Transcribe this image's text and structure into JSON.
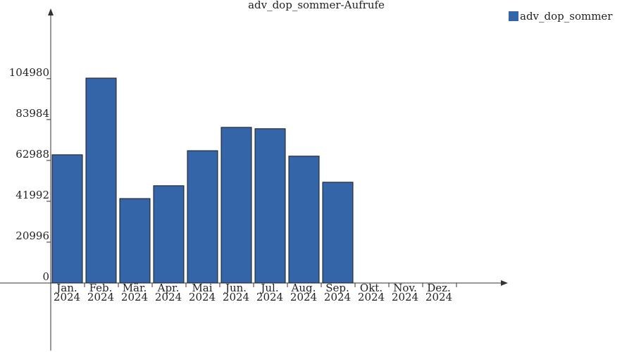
{
  "chart_data": {
    "type": "bar",
    "title": "adv_dop_sommer-Aufrufe",
    "categories": [
      [
        "Jan.",
        "2024"
      ],
      [
        "Feb.",
        "2024"
      ],
      [
        "Mär.",
        "2024"
      ],
      [
        "Apr.",
        "2024"
      ],
      [
        "Mai",
        "2024"
      ],
      [
        "Jun.",
        "2024"
      ],
      [
        "Jul.",
        "2024"
      ],
      [
        "Aug.",
        "2024"
      ],
      [
        "Sep.",
        "2024"
      ],
      [
        "Okt.",
        "2024"
      ],
      [
        "Nov.",
        "2024"
      ],
      [
        "Dez.",
        "2024"
      ]
    ],
    "series": [
      {
        "name": "adv_dop_sommer",
        "color": "#3465a8",
        "values": [
          65900,
          105300,
          43400,
          50000,
          68000,
          80000,
          79300,
          65200,
          51800,
          null,
          null,
          null
        ]
      }
    ],
    "ylim": [
      0,
      140000
    ],
    "yticks": [
      0,
      20996,
      41992,
      62988,
      83984,
      104980
    ],
    "legend": "top-right"
  }
}
